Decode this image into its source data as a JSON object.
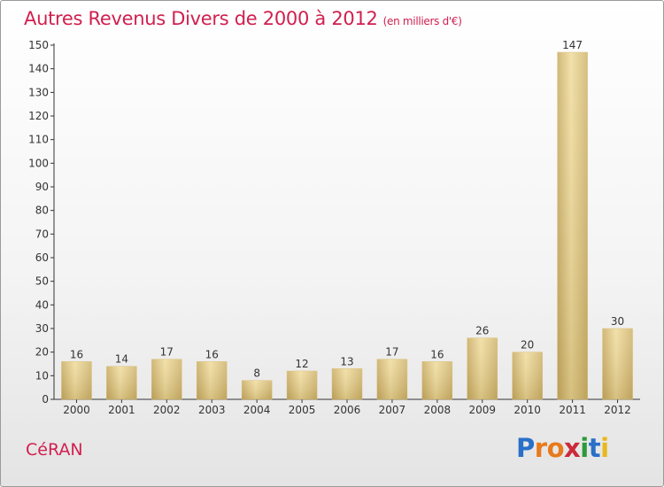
{
  "header": {
    "title": "Autres Revenus Divers de 2000 à 2012",
    "subtitle": "(en milliers d'€)"
  },
  "footer": {
    "place": "CéRAN",
    "logo": {
      "text": "Proxiti",
      "letters": [
        {
          "ch": "P",
          "color": "#2a6fc8"
        },
        {
          "ch": "r",
          "color": "#e87a1c"
        },
        {
          "ch": "o",
          "color": "#e87a1c"
        },
        {
          "ch": "x",
          "color": "#cc2a3a"
        },
        {
          "ch": "i",
          "color": "#2a9a3a"
        },
        {
          "ch": "t",
          "color": "#2a6fc8"
        },
        {
          "ch": "i",
          "color": "#e8b81c"
        }
      ]
    }
  },
  "chart_data": {
    "type": "bar",
    "title": "Autres Revenus Divers de 2000 à 2012",
    "subtitle": "(en milliers d'€)",
    "categories": [
      "2000",
      "2001",
      "2002",
      "2003",
      "2004",
      "2005",
      "2006",
      "2007",
      "2008",
      "2009",
      "2010",
      "2011",
      "2012"
    ],
    "values": [
      16,
      14,
      17,
      16,
      8,
      12,
      13,
      17,
      16,
      26,
      20,
      147,
      30
    ],
    "ylim": [
      0,
      150
    ],
    "yticks": [
      0,
      10,
      20,
      30,
      40,
      50,
      60,
      70,
      80,
      90,
      100,
      110,
      120,
      130,
      140,
      150
    ],
    "grid": false,
    "bar_color": "#e2c77e",
    "data_labels": true
  }
}
